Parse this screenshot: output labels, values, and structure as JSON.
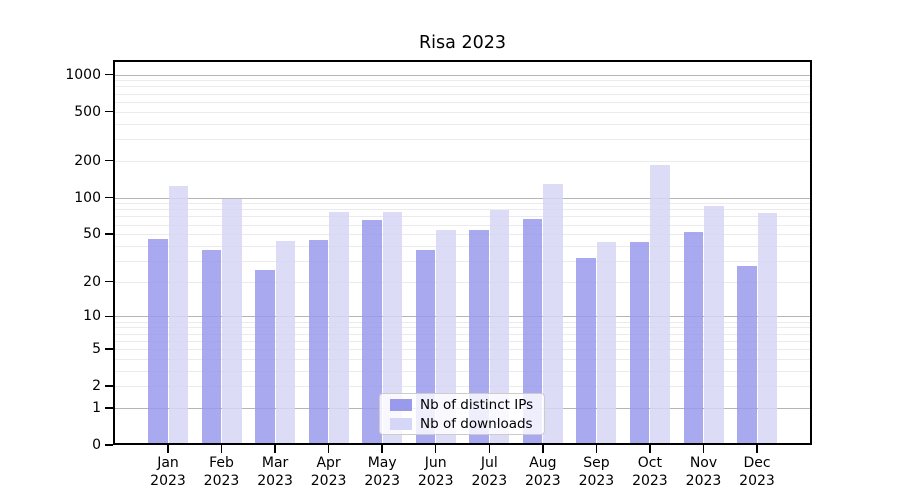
{
  "chart_data": {
    "type": "bar",
    "title": "Risa 2023",
    "categories": [
      "Jan 2023",
      "Feb 2023",
      "Mar 2023",
      "Apr 2023",
      "May 2023",
      "Jun 2023",
      "Jul 2023",
      "Aug 2023",
      "Sep 2023",
      "Oct 2023",
      "Nov 2023",
      "Dec 2023"
    ],
    "series": [
      {
        "name": "Nb of distinct IPs",
        "color": "#9a9aed",
        "values": [
          46,
          37,
          25,
          45,
          66,
          37,
          54,
          67,
          32,
          43,
          52,
          27
        ]
      },
      {
        "name": "Nb of downloads",
        "color": "#d6d6f6",
        "values": [
          125,
          98,
          44,
          76,
          76,
          54,
          79,
          130,
          43,
          183,
          85,
          75
        ]
      }
    ],
    "xlabel": "",
    "ylabel": "",
    "yscale": "log1p",
    "yticks": [
      0,
      1,
      2,
      5,
      10,
      20,
      50,
      100,
      200,
      500,
      1000
    ],
    "ylim": [
      0,
      1310
    ],
    "grid": "on",
    "legend_position": "lower center"
  },
  "colors": {
    "major_grid": "#b5b5b5",
    "minor_grid": "#ebebeb",
    "axis": "#000000",
    "legend_border": "#cccccc"
  }
}
